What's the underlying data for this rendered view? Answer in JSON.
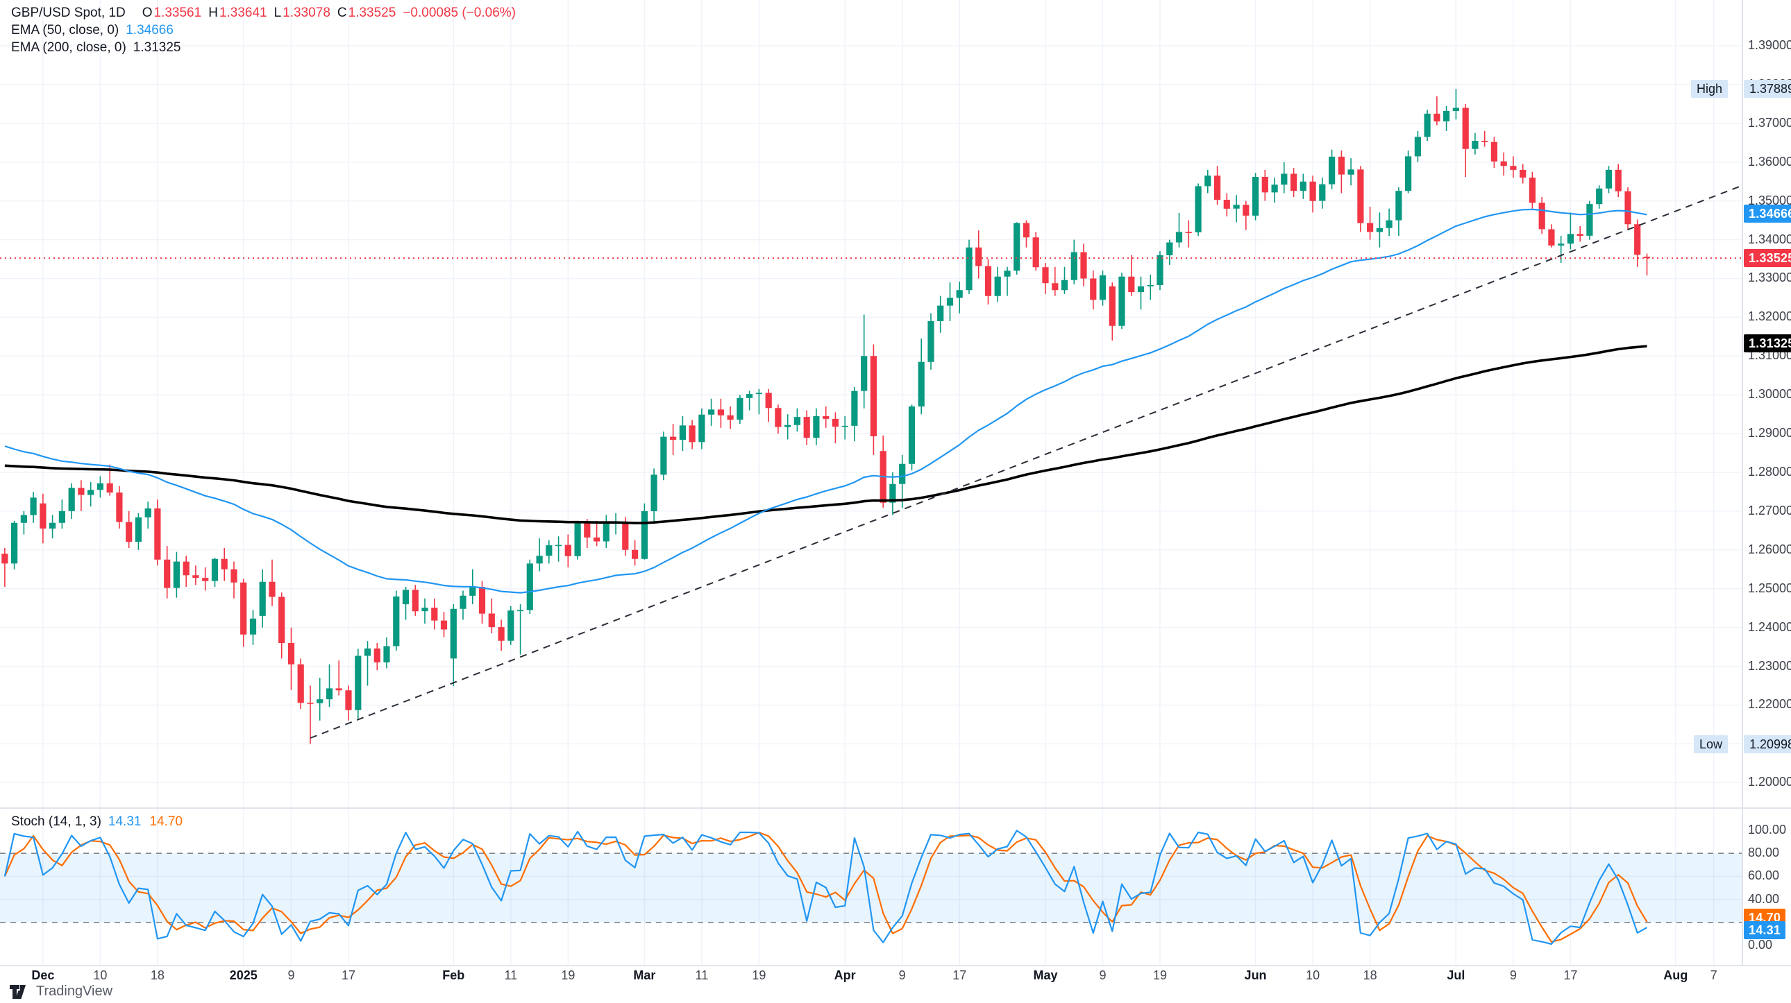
{
  "legend": {
    "title": "GBP/USD Spot, 1D",
    "o_label": "O",
    "o_value": "1.33561",
    "h_label": "H",
    "h_value": "1.33641",
    "l_label": "L",
    "l_value": "1.33078",
    "c_label": "C",
    "c_value": "1.33525",
    "change": "−0.00085 (−0.06%)",
    "ema50_label": "EMA (50, close, 0)",
    "ema50_value": "1.34666",
    "ema200_label": "EMA (200, close, 0)",
    "ema200_value": "1.31325",
    "stoch_label": "Stoch (14, 1, 3)",
    "stoch_k": "14.31",
    "stoch_d": "14.70"
  },
  "badges": {
    "high_text": "High",
    "high_value": "1.37889",
    "ema50": "1.34666",
    "last": "1.33525",
    "ema200": "1.31325",
    "low_text": "Low",
    "low_value": "1.20998",
    "stoch_d": "14.70",
    "stoch_k": "14.31"
  },
  "logo": {
    "text": "TradingView"
  },
  "colors": {
    "up": "#089981",
    "down": "#F23645",
    "ema50": "#2196F3",
    "ema200": "#000000",
    "stoch_k": "#2196F3",
    "stoch_d": "#FF6D00",
    "band_fill": "rgba(33,150,243,0.10)",
    "band_edge": "#787B86",
    "grid": "#F0F3FA",
    "separator": "#E0E3EB",
    "trendline": "#2A2E39",
    "last_line": "#F23645",
    "chip_bg": "#D5E7F8",
    "badge_blue": "#2196F3",
    "badge_red": "#F23645",
    "badge_black": "#000000"
  },
  "price_axis": {
    "ticks": [
      "1.39000",
      "1.38000",
      "1.37000",
      "1.36000",
      "1.35000",
      "1.34000",
      "1.33000",
      "1.32000",
      "1.31000",
      "1.30000",
      "1.29000",
      "1.28000",
      "1.27000",
      "1.26000",
      "1.25000",
      "1.24000",
      "1.23000",
      "1.22000",
      "1.21000",
      "1.20000"
    ]
  },
  "stoch_axis": {
    "ticks": [
      {
        "label": "100.00",
        "value": 100
      },
      {
        "label": "80.00",
        "value": 80
      },
      {
        "label": "60.00",
        "value": 60
      },
      {
        "label": "40.00",
        "value": 40
      },
      {
        "label": "0.00",
        "value": 0
      }
    ]
  },
  "time_axis": {
    "ticks": [
      {
        "label": "Dec",
        "bar": 4,
        "bold": true
      },
      {
        "label": "10",
        "bar": 10,
        "bold": false
      },
      {
        "label": "18",
        "bar": 16,
        "bold": false
      },
      {
        "label": "2025",
        "bar": 25,
        "bold": true
      },
      {
        "label": "9",
        "bar": 30,
        "bold": false
      },
      {
        "label": "17",
        "bar": 36,
        "bold": false
      },
      {
        "label": "Feb",
        "bar": 47,
        "bold": true
      },
      {
        "label": "11",
        "bar": 53,
        "bold": false
      },
      {
        "label": "19",
        "bar": 59,
        "bold": false
      },
      {
        "label": "Mar",
        "bar": 67,
        "bold": true
      },
      {
        "label": "11",
        "bar": 73,
        "bold": false
      },
      {
        "label": "19",
        "bar": 79,
        "bold": false
      },
      {
        "label": "Apr",
        "bar": 88,
        "bold": true
      },
      {
        "label": "9",
        "bar": 94,
        "bold": false
      },
      {
        "label": "17",
        "bar": 100,
        "bold": false
      },
      {
        "label": "May",
        "bar": 109,
        "bold": true
      },
      {
        "label": "9",
        "bar": 115,
        "bold": false
      },
      {
        "label": "19",
        "bar": 121,
        "bold": false
      },
      {
        "label": "Jun",
        "bar": 131,
        "bold": true
      },
      {
        "label": "10",
        "bar": 137,
        "bold": false
      },
      {
        "label": "18",
        "bar": 143,
        "bold": false
      },
      {
        "label": "Jul",
        "bar": 152,
        "bold": true
      },
      {
        "label": "9",
        "bar": 158,
        "bold": false
      },
      {
        "label": "17",
        "bar": 164,
        "bold": false
      },
      {
        "label": "Aug",
        "bar": 175,
        "bold": true
      },
      {
        "label": "7",
        "bar": 179,
        "bold": false
      }
    ]
  },
  "chart_data": {
    "type": "candlestick",
    "title": "GBP/USD Spot",
    "interval": "1D",
    "start_date": "2024-11-26",
    "end_date": "2025-07-29",
    "price_axis_range": [
      1.194,
      1.402
    ],
    "indicators": [
      "EMA (50, close, 0)",
      "EMA (200, close, 0)",
      "Stoch (14, 1, 3)"
    ],
    "last": {
      "open": 1.33561,
      "high": 1.33641,
      "low": 1.33078,
      "close": 1.33525,
      "change": -0.00085,
      "change_pct": -0.06
    },
    "marked_high": 1.37889,
    "marked_low": 1.20998,
    "ema50_value": 1.34666,
    "ema200_value": 1.31325,
    "ema_seeds": {
      "ema50": 1.288,
      "ema200": 1.282
    },
    "stoch": {
      "k": 14.31,
      "d": 14.7,
      "params": [
        14,
        1,
        3
      ],
      "overbought": 80,
      "oversold": 20
    },
    "trendline": {
      "from_bar": 32,
      "from_price": 1.2115,
      "slope_per_bar": 0.00095
    },
    "candles": [
      [
        1.259,
        1.2605,
        1.2505,
        1.2565
      ],
      [
        1.2565,
        1.2675,
        1.255,
        1.267
      ],
      [
        1.267,
        1.27,
        1.264,
        1.269
      ],
      [
        1.269,
        1.275,
        1.267,
        1.2735
      ],
      [
        1.272,
        1.2745,
        1.2617,
        1.2655
      ],
      [
        1.2655,
        1.269,
        1.263,
        1.267
      ],
      [
        1.267,
        1.273,
        1.2655,
        1.27
      ],
      [
        1.27,
        1.2772,
        1.268,
        1.276
      ],
      [
        1.276,
        1.278,
        1.27,
        1.2742
      ],
      [
        1.2742,
        1.2775,
        1.2712,
        1.2755
      ],
      [
        1.2755,
        1.279,
        1.2735,
        1.2772
      ],
      [
        1.2772,
        1.282,
        1.274,
        1.2748
      ],
      [
        1.2748,
        1.2765,
        1.2655,
        1.2672
      ],
      [
        1.2672,
        1.27,
        1.2605,
        1.2621
      ],
      [
        1.2621,
        1.2695,
        1.26,
        1.2684
      ],
      [
        1.2684,
        1.2725,
        1.2655,
        1.2707
      ],
      [
        1.2707,
        1.273,
        1.256,
        1.2575
      ],
      [
        1.2575,
        1.261,
        1.2475,
        1.2502
      ],
      [
        1.2502,
        1.2595,
        1.2477,
        1.257
      ],
      [
        1.257,
        1.2585,
        1.2505,
        1.2535
      ],
      [
        1.2535,
        1.256,
        1.251,
        1.2528
      ],
      [
        1.2528,
        1.2555,
        1.2495,
        1.252
      ],
      [
        1.252,
        1.258,
        1.2505,
        1.2577
      ],
      [
        1.2577,
        1.2605,
        1.252,
        1.255
      ],
      [
        1.255,
        1.257,
        1.2475,
        1.2516
      ],
      [
        1.2516,
        1.2525,
        1.235,
        1.2382
      ],
      [
        1.2382,
        1.2445,
        1.2355,
        1.2423
      ],
      [
        1.243,
        1.255,
        1.24,
        1.2518
      ],
      [
        1.2518,
        1.2575,
        1.2455,
        1.2479
      ],
      [
        1.2479,
        1.249,
        1.232,
        1.236
      ],
      [
        1.236,
        1.24,
        1.2239,
        1.2305
      ],
      [
        1.2305,
        1.232,
        1.219,
        1.2206
      ],
      [
        1.2206,
        1.225,
        1.20998,
        1.2205
      ],
      [
        1.2205,
        1.227,
        1.216,
        1.2215
      ],
      [
        1.2215,
        1.2305,
        1.2195,
        1.2243
      ],
      [
        1.2243,
        1.2315,
        1.2225,
        1.2238
      ],
      [
        1.2238,
        1.225,
        1.216,
        1.2187
      ],
      [
        1.2187,
        1.2345,
        1.2165,
        1.2327
      ],
      [
        1.2327,
        1.2365,
        1.225,
        1.2346
      ],
      [
        1.2346,
        1.236,
        1.229,
        1.231
      ],
      [
        1.231,
        1.2375,
        1.2295,
        1.2352
      ],
      [
        1.2352,
        1.2495,
        1.234,
        1.248
      ],
      [
        1.246,
        1.2505,
        1.242,
        1.2497
      ],
      [
        1.2497,
        1.251,
        1.243,
        1.2442
      ],
      [
        1.2442,
        1.2475,
        1.241,
        1.2451
      ],
      [
        1.2451,
        1.2475,
        1.2395,
        1.2418
      ],
      [
        1.2418,
        1.244,
        1.2375,
        1.2395
      ],
      [
        1.232,
        1.246,
        1.2249,
        1.2448
      ],
      [
        1.2448,
        1.2495,
        1.242,
        1.2482
      ],
      [
        1.2482,
        1.255,
        1.246,
        1.2505
      ],
      [
        1.2505,
        1.252,
        1.241,
        1.2436
      ],
      [
        1.2436,
        1.2475,
        1.2385,
        1.2401
      ],
      [
        1.2401,
        1.242,
        1.234,
        1.2366
      ],
      [
        1.2366,
        1.2455,
        1.2355,
        1.2444
      ],
      [
        1.2444,
        1.246,
        1.233,
        1.2445
      ],
      [
        1.2445,
        1.2575,
        1.2435,
        1.2565
      ],
      [
        1.2565,
        1.263,
        1.2545,
        1.2585
      ],
      [
        1.2585,
        1.2625,
        1.2565,
        1.2612
      ],
      [
        1.2612,
        1.2635,
        1.257,
        1.2613
      ],
      [
        1.2613,
        1.264,
        1.2555,
        1.2584
      ],
      [
        1.2584,
        1.2675,
        1.2575,
        1.267
      ],
      [
        1.267,
        1.268,
        1.2605,
        1.2632
      ],
      [
        1.2632,
        1.2675,
        1.261,
        1.2622
      ],
      [
        1.2622,
        1.269,
        1.2605,
        1.2668
      ],
      [
        1.2668,
        1.2695,
        1.264,
        1.2673
      ],
      [
        1.2673,
        1.2685,
        1.2585,
        1.26
      ],
      [
        1.26,
        1.2625,
        1.256,
        1.2577
      ],
      [
        1.2577,
        1.272,
        1.2575,
        1.27
      ],
      [
        1.27,
        1.281,
        1.267,
        1.2794
      ],
      [
        1.2794,
        1.2905,
        1.278,
        1.2892
      ],
      [
        1.2892,
        1.2925,
        1.2845,
        1.2884
      ],
      [
        1.2884,
        1.2945,
        1.2855,
        1.2921
      ],
      [
        1.2921,
        1.2935,
        1.286,
        1.2878
      ],
      [
        1.2878,
        1.2965,
        1.286,
        1.2949
      ],
      [
        1.2949,
        1.299,
        1.292,
        1.2962
      ],
      [
        1.2962,
        1.299,
        1.2915,
        1.2947
      ],
      [
        1.2947,
        1.297,
        1.2912,
        1.2936
      ],
      [
        1.2936,
        1.3,
        1.2925,
        1.2992
      ],
      [
        1.2992,
        1.301,
        1.296,
        1.3002
      ],
      [
        1.3002,
        1.3015,
        1.295,
        1.3005
      ],
      [
        1.3005,
        1.3015,
        1.293,
        1.2966
      ],
      [
        1.2966,
        1.2975,
        1.29,
        1.2917
      ],
      [
        1.2917,
        1.295,
        1.2885,
        1.2922
      ],
      [
        1.2922,
        1.2965,
        1.2905,
        1.2943
      ],
      [
        1.2943,
        1.296,
        1.287,
        1.2889
      ],
      [
        1.2889,
        1.2965,
        1.287,
        1.2945
      ],
      [
        1.2945,
        1.297,
        1.2915,
        1.2938
      ],
      [
        1.2938,
        1.2955,
        1.2875,
        1.2918
      ],
      [
        1.2918,
        1.2945,
        1.2885,
        1.292
      ],
      [
        1.292,
        1.302,
        1.288,
        1.301
      ],
      [
        1.301,
        1.3207,
        1.2965,
        1.31
      ],
      [
        1.31,
        1.313,
        1.2845,
        1.2893
      ],
      [
        1.2855,
        1.2895,
        1.2709,
        1.2722
      ],
      [
        1.2722,
        1.28,
        1.269,
        1.277
      ],
      [
        1.277,
        1.2845,
        1.2708,
        1.2822
      ],
      [
        1.2822,
        1.2975,
        1.2805,
        1.297
      ],
      [
        1.297,
        1.3145,
        1.295,
        1.3085
      ],
      [
        1.3085,
        1.321,
        1.3065,
        1.319
      ],
      [
        1.319,
        1.3255,
        1.316,
        1.323
      ],
      [
        1.323,
        1.329,
        1.319,
        1.325
      ],
      [
        1.325,
        1.3292,
        1.321,
        1.327
      ],
      [
        1.327,
        1.34,
        1.326,
        1.338
      ],
      [
        1.338,
        1.3424,
        1.33,
        1.3332
      ],
      [
        1.3332,
        1.335,
        1.3233,
        1.3255
      ],
      [
        1.3255,
        1.333,
        1.324,
        1.3305
      ],
      [
        1.3305,
        1.333,
        1.3255,
        1.332
      ],
      [
        1.332,
        1.3445,
        1.331,
        1.3443
      ],
      [
        1.3443,
        1.345,
        1.338,
        1.3406
      ],
      [
        1.3406,
        1.342,
        1.332,
        1.3329
      ],
      [
        1.3329,
        1.334,
        1.326,
        1.3288
      ],
      [
        1.3288,
        1.333,
        1.3255,
        1.327
      ],
      [
        1.327,
        1.333,
        1.326,
        1.3296
      ],
      [
        1.3296,
        1.34,
        1.3285,
        1.3368
      ],
      [
        1.3368,
        1.339,
        1.328,
        1.33
      ],
      [
        1.33,
        1.332,
        1.322,
        1.3245
      ],
      [
        1.3245,
        1.332,
        1.323,
        1.3308
      ],
      [
        1.328,
        1.329,
        1.314,
        1.3178
      ],
      [
        1.3178,
        1.3315,
        1.317,
        1.3305
      ],
      [
        1.3305,
        1.336,
        1.3255,
        1.3265
      ],
      [
        1.3265,
        1.3305,
        1.322,
        1.328
      ],
      [
        1.328,
        1.331,
        1.3245,
        1.3283
      ],
      [
        1.3283,
        1.337,
        1.327,
        1.336
      ],
      [
        1.336,
        1.34,
        1.3335,
        1.3393
      ],
      [
        1.3393,
        1.3469,
        1.338,
        1.342
      ],
      [
        1.342,
        1.345,
        1.338,
        1.3419
      ],
      [
        1.3419,
        1.3545,
        1.341,
        1.3538
      ],
      [
        1.3538,
        1.358,
        1.352,
        1.3565
      ],
      [
        1.3565,
        1.359,
        1.349,
        1.3503
      ],
      [
        1.3503,
        1.352,
        1.346,
        1.348
      ],
      [
        1.348,
        1.3515,
        1.3445,
        1.349
      ],
      [
        1.349,
        1.35,
        1.3425,
        1.3462
      ],
      [
        1.3462,
        1.3572,
        1.345,
        1.3562
      ],
      [
        1.3562,
        1.358,
        1.35,
        1.3522
      ],
      [
        1.3522,
        1.356,
        1.3495,
        1.3542
      ],
      [
        1.3542,
        1.36,
        1.352,
        1.357
      ],
      [
        1.357,
        1.3585,
        1.351,
        1.3526
      ],
      [
        1.3526,
        1.357,
        1.3505,
        1.355
      ],
      [
        1.355,
        1.3565,
        1.347,
        1.35
      ],
      [
        1.35,
        1.356,
        1.348,
        1.3543
      ],
      [
        1.3543,
        1.3632,
        1.353,
        1.3614
      ],
      [
        1.3614,
        1.363,
        1.352,
        1.3568
      ],
      [
        1.3568,
        1.361,
        1.354,
        1.3581
      ],
      [
        1.3581,
        1.359,
        1.342,
        1.3443
      ],
      [
        1.3443,
        1.3485,
        1.34,
        1.342
      ],
      [
        1.342,
        1.347,
        1.338,
        1.343
      ],
      [
        1.343,
        1.348,
        1.341,
        1.345
      ],
      [
        1.345,
        1.3535,
        1.341,
        1.3526
      ],
      [
        1.3526,
        1.363,
        1.352,
        1.3615
      ],
      [
        1.3615,
        1.368,
        1.36,
        1.3665
      ],
      [
        1.3665,
        1.3735,
        1.3655,
        1.3725
      ],
      [
        1.3725,
        1.377,
        1.3695,
        1.3705
      ],
      [
        1.3705,
        1.3745,
        1.368,
        1.3732
      ],
      [
        1.3732,
        1.37889,
        1.371,
        1.374
      ],
      [
        1.374,
        1.375,
        1.3562,
        1.3634
      ],
      [
        1.3634,
        1.3675,
        1.362,
        1.3655
      ],
      [
        1.3655,
        1.368,
        1.364,
        1.3652
      ],
      [
        1.3652,
        1.3665,
        1.3585,
        1.3602
      ],
      [
        1.3602,
        1.3625,
        1.3565,
        1.359
      ],
      [
        1.359,
        1.3615,
        1.356,
        1.358
      ],
      [
        1.358,
        1.3595,
        1.3545,
        1.356
      ],
      [
        1.356,
        1.3575,
        1.348,
        1.3495
      ],
      [
        1.3495,
        1.351,
        1.3415,
        1.3427
      ],
      [
        1.3427,
        1.344,
        1.338,
        1.3385
      ],
      [
        1.3385,
        1.341,
        1.334,
        1.339
      ],
      [
        1.339,
        1.347,
        1.3375,
        1.3415
      ],
      [
        1.3415,
        1.3435,
        1.3395,
        1.341
      ],
      [
        1.341,
        1.35,
        1.34,
        1.3492
      ],
      [
        1.3492,
        1.354,
        1.348,
        1.3532
      ],
      [
        1.3532,
        1.359,
        1.352,
        1.358
      ],
      [
        1.358,
        1.3595,
        1.351,
        1.3525
      ],
      [
        1.3525,
        1.3535,
        1.3425,
        1.344
      ],
      [
        1.344,
        1.3452,
        1.333,
        1.3361
      ],
      [
        1.33561,
        1.33641,
        1.33078,
        1.33525
      ]
    ]
  }
}
